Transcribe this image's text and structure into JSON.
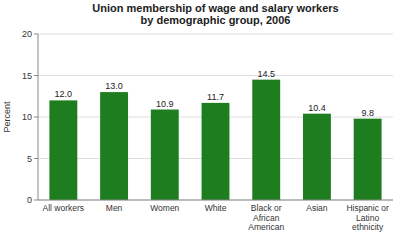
{
  "chart_data": {
    "type": "bar",
    "title": "Union membership of wage and salary workers\nby demographic group, 2006",
    "categories": [
      "All workers",
      "Men",
      "Women",
      "White",
      "Black or\nAfrican\nAmerican",
      "Asian",
      "Hispanic or\nLatino\nethnicity"
    ],
    "values": [
      12.0,
      13.0,
      10.9,
      11.7,
      14.5,
      10.4,
      9.8
    ],
    "value_labels": [
      "12.0",
      "13.0",
      "10.9",
      "11.7",
      "14.5",
      "10.4",
      "9.8"
    ],
    "data_labels": true,
    "color": "#1e7d1e",
    "ylabel": "Percent",
    "ylim": [
      0,
      20
    ],
    "yticks": [
      0,
      5,
      10,
      15,
      20
    ],
    "grid": true
  }
}
